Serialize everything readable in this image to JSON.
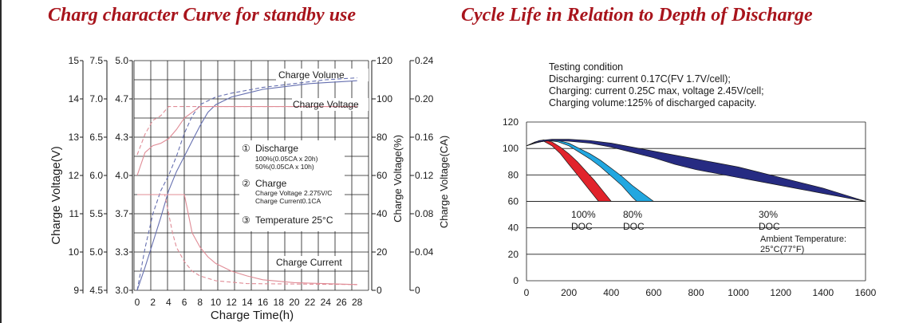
{
  "left_title": "Charg character Curve for standby use",
  "right_title": "Cycle Life in Relation to Depth of Discharge",
  "chart_data": [
    {
      "type": "line",
      "title": "Charg character Curve for standby use",
      "xlabel": "Charge Time(h)",
      "x_ticks": [
        "0",
        "2",
        "4",
        "6",
        "8",
        "10",
        "12",
        "14",
        "16",
        "18",
        "20",
        "22",
        "24",
        "26",
        "28"
      ],
      "xlim": [
        0,
        28
      ],
      "axes": {
        "battery_voltage_12v": {
          "ticks": [
            "15",
            "14",
            "13",
            "12",
            "11",
            "10",
            "9"
          ]
        },
        "voltage_2v": {
          "ticks": [
            "7.5",
            "7.0",
            "6.5",
            "6.0",
            "5.5",
            "5.0",
            "4.5"
          ]
        },
        "voltage_cell": {
          "label": "Charge Voltage(V)",
          "ticks": [
            "5.0",
            "4.7",
            "4.3",
            "4.0",
            "3.7",
            "3.3",
            "3.0"
          ]
        },
        "charge_volume": {
          "label": "Charge Voltage(%)",
          "ticks": [
            "120",
            "100",
            "80",
            "60",
            "40",
            "20",
            "0"
          ],
          "range": [
            0,
            120
          ]
        },
        "charge_current": {
          "label": "Charge Voltage(CA)",
          "ticks": [
            "0.24",
            "0.20",
            "0.16",
            "0.12",
            "0.08",
            "0.04",
            "0"
          ],
          "range": [
            0,
            0.24
          ]
        }
      },
      "curve_labels": {
        "volume": "Charge Volume",
        "voltage": "Charge Voltage",
        "current": "Charge Current"
      },
      "legend": {
        "num1": "①",
        "l1": "Discharge",
        "l1a": "100%(0.05CA x 20h)",
        "l1b": "50%(0.05CA x 10h)",
        "num2": "②",
        "l2": "Charge",
        "l2a": "Charge Voltage 2.275V/C",
        "l2b": "Charge Current0.1CA",
        "num3": "③",
        "l3": "Temperature 25°C"
      },
      "series": [
        {
          "key": "volume_100",
          "axis": "charge_volume",
          "style": "solid",
          "color": "#6670b0",
          "points": [
            [
              0,
              0
            ],
            [
              1,
              12
            ],
            [
              2,
              25
            ],
            [
              3,
              38
            ],
            [
              4,
              52
            ],
            [
              5,
              62
            ],
            [
              6,
              70
            ],
            [
              7,
              78
            ],
            [
              8,
              86
            ],
            [
              9,
              93
            ],
            [
              10,
              97
            ],
            [
              12,
              101
            ],
            [
              14,
              103
            ],
            [
              16,
              105
            ],
            [
              18,
              106
            ],
            [
              20,
              107
            ],
            [
              22,
              108
            ],
            [
              24,
              108.5
            ],
            [
              26,
              109
            ],
            [
              28,
              109.5
            ]
          ]
        },
        {
          "key": "volume_50",
          "axis": "charge_volume",
          "style": "dashed",
          "color": "#6670b0",
          "points": [
            [
              0,
              0
            ],
            [
              1,
              22
            ],
            [
              2,
              40
            ],
            [
              3,
              52
            ],
            [
              4,
              60
            ],
            [
              5,
              70
            ],
            [
              6,
              82
            ],
            [
              7,
              91
            ],
            [
              8,
              97
            ],
            [
              10,
              101
            ],
            [
              12,
              103
            ],
            [
              14,
              104.5
            ],
            [
              16,
              106
            ],
            [
              20,
              108
            ],
            [
              24,
              110
            ],
            [
              28,
              111
            ]
          ]
        },
        {
          "key": "voltage_100",
          "axis": "voltage_cell",
          "style": "solid",
          "color": "#e08c96",
          "points": [
            [
              0,
              4.0
            ],
            [
              0.5,
              4.1
            ],
            [
              1,
              4.2
            ],
            [
              2,
              4.26
            ],
            [
              3,
              4.28
            ],
            [
              4,
              4.32
            ],
            [
              5,
              4.4
            ],
            [
              6,
              4.5
            ],
            [
              7,
              4.55
            ],
            [
              8,
              4.6
            ],
            [
              28,
              4.6
            ]
          ]
        },
        {
          "key": "voltage_50",
          "axis": "voltage_cell",
          "style": "dashed",
          "color": "#e08c96",
          "points": [
            [
              0,
              4.18
            ],
            [
              1,
              4.36
            ],
            [
              2,
              4.48
            ],
            [
              3,
              4.52
            ],
            [
              4,
              4.6
            ],
            [
              28,
              4.6
            ]
          ]
        },
        {
          "key": "current_100",
          "axis": "charge_current",
          "style": "solid",
          "color": "#e08c96",
          "points": [
            [
              0,
              0.1
            ],
            [
              6,
              0.1
            ],
            [
              6.5,
              0.08
            ],
            [
              7,
              0.06
            ],
            [
              8,
              0.045
            ],
            [
              9,
              0.035
            ],
            [
              10,
              0.028
            ],
            [
              12,
              0.02
            ],
            [
              14,
              0.015
            ],
            [
              16,
              0.011
            ],
            [
              20,
              0.008
            ],
            [
              28,
              0.006
            ]
          ]
        },
        {
          "key": "current_50",
          "axis": "charge_current",
          "style": "dashed",
          "color": "#e08c96",
          "points": [
            [
              0,
              0.1
            ],
            [
              3.5,
              0.1
            ],
            [
              4,
              0.08
            ],
            [
              4.5,
              0.06
            ],
            [
              5,
              0.045
            ],
            [
              6,
              0.03
            ],
            [
              7,
              0.02
            ],
            [
              8,
              0.015
            ],
            [
              10,
              0.01
            ],
            [
              14,
              0.007
            ],
            [
              28,
              0.006
            ]
          ]
        }
      ]
    },
    {
      "type": "area",
      "title": "Cycle Life in Relation to Depth of Discharge",
      "xlabel": "",
      "ylabel": "",
      "x_ticks": [
        "0",
        "200",
        "400",
        "600",
        "800",
        "1000",
        "1200",
        "1400",
        "1600"
      ],
      "y_ticks": [
        "120",
        "100",
        "80",
        "60",
        "40",
        "20",
        "0"
      ],
      "xlim": [
        0,
        1600
      ],
      "ylim": [
        0,
        120
      ],
      "grid": true,
      "testing_condition": [
        "Testing condition",
        "Discharging: current 0.17C(FV 1.7V/cell);",
        "Charging: current 0.25C max, voltage 2.45V/cell;",
        "Charging volume:125% of discharged capacity."
      ],
      "ambient": [
        "Ambient Temperature:",
        "25°C(77°F)"
      ],
      "series": [
        {
          "label_line1": "100%",
          "label_line2": "DOC",
          "color": "#e1242c",
          "upper": [
            [
              0,
              102
            ],
            [
              40,
              105
            ],
            [
              80,
              106.5
            ],
            [
              120,
              105
            ],
            [
              160,
              101
            ],
            [
              200,
              96
            ],
            [
              240,
              90
            ],
            [
              280,
              83
            ],
            [
              320,
              76
            ],
            [
              360,
              68
            ],
            [
              400,
              60
            ]
          ],
          "lower": [
            [
              0,
              102
            ],
            [
              40,
              104
            ],
            [
              80,
              105.5
            ],
            [
              120,
              102
            ],
            [
              160,
              96
            ],
            [
              200,
              88
            ],
            [
              240,
              80
            ],
            [
              280,
              72
            ],
            [
              320,
              64
            ],
            [
              340,
              60
            ]
          ]
        },
        {
          "label_line1": "80%",
          "label_line2": "DOC",
          "color": "#22a7e0",
          "upper": [
            [
              0,
              102
            ],
            [
              50,
              105
            ],
            [
              100,
              106.5
            ],
            [
              150,
              106
            ],
            [
              200,
              104
            ],
            [
              250,
              100
            ],
            [
              300,
              96
            ],
            [
              350,
              91
            ],
            [
              400,
              85
            ],
            [
              450,
              79
            ],
            [
              500,
              72
            ],
            [
              550,
              66
            ],
            [
              600,
              60
            ]
          ],
          "lower": [
            [
              0,
              102
            ],
            [
              50,
              104.5
            ],
            [
              100,
              106
            ],
            [
              150,
              105
            ],
            [
              200,
              102
            ],
            [
              250,
              97
            ],
            [
              300,
              92
            ],
            [
              350,
              86
            ],
            [
              400,
              79
            ],
            [
              450,
              72
            ],
            [
              500,
              63
            ],
            [
              520,
              60
            ]
          ]
        },
        {
          "label_line1": "30%",
          "label_line2": "DOC",
          "color": "#262b82",
          "upper": [
            [
              0,
              102
            ],
            [
              60,
              106
            ],
            [
              120,
              107
            ],
            [
              200,
              107
            ],
            [
              300,
              106
            ],
            [
              400,
              104
            ],
            [
              500,
              101
            ],
            [
              600,
              98
            ],
            [
              700,
              95
            ],
            [
              800,
              92
            ],
            [
              900,
              89
            ],
            [
              1000,
              86
            ],
            [
              1100,
              82
            ],
            [
              1200,
              78
            ],
            [
              1300,
              74
            ],
            [
              1400,
              70
            ],
            [
              1500,
              65
            ],
            [
              1600,
              60
            ]
          ],
          "lower": [
            [
              0,
              102
            ],
            [
              60,
              105
            ],
            [
              120,
              106
            ],
            [
              200,
              105.5
            ],
            [
              300,
              104
            ],
            [
              400,
              101
            ],
            [
              500,
              97
            ],
            [
              600,
              93
            ],
            [
              700,
              88
            ],
            [
              800,
              84
            ],
            [
              900,
              81
            ],
            [
              1000,
              78
            ],
            [
              1100,
              75
            ],
            [
              1200,
              72
            ],
            [
              1300,
              69
            ],
            [
              1400,
              66
            ],
            [
              1500,
              63
            ],
            [
              1600,
              60
            ]
          ]
        }
      ]
    }
  ]
}
